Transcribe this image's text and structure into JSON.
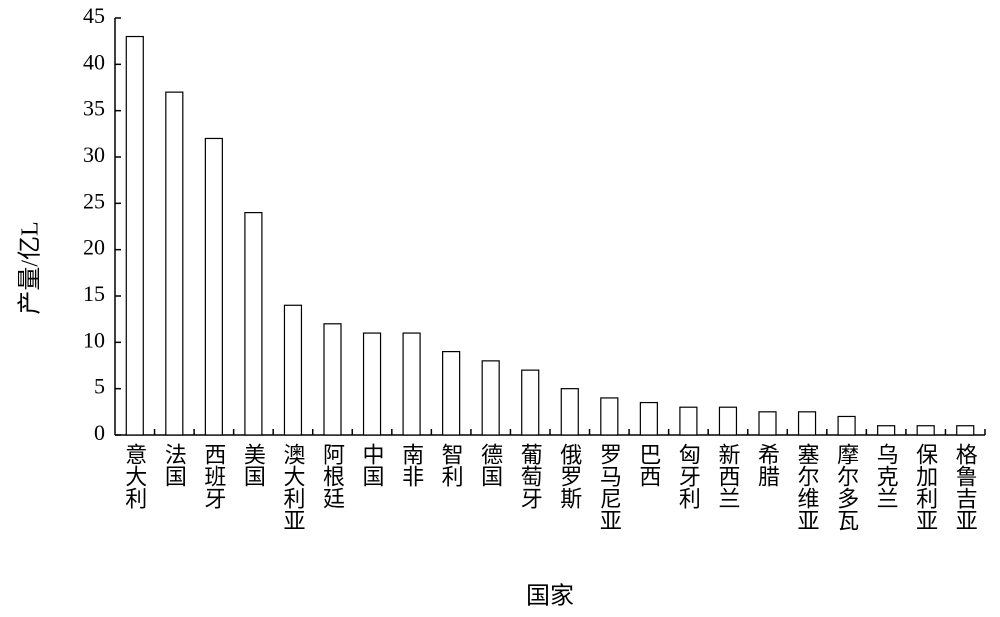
{
  "chart_data": {
    "type": "bar",
    "x_label": "国家",
    "y_label": "产量/亿L",
    "categories": [
      "意大利",
      "法国",
      "西班牙",
      "美国",
      "澳大利亚",
      "阿根廷",
      "中国",
      "南非",
      "智利",
      "德国",
      "葡萄牙",
      "俄罗斯",
      "罗马尼亚",
      "巴西",
      "匈牙利",
      "新西兰",
      "希腊",
      "塞尔维亚",
      "摩尔多瓦",
      "乌克兰",
      "保加利亚",
      "格鲁吉亚"
    ],
    "values": [
      43,
      37,
      32,
      24,
      14,
      12,
      11,
      11,
      9,
      8,
      7,
      5,
      4,
      3.5,
      3,
      3,
      2.5,
      2.5,
      2,
      1,
      1,
      1
    ],
    "color": "#ffffff",
    "ylim": [
      0,
      45
    ],
    "yticks": [
      0,
      5,
      10,
      15,
      20,
      25,
      30,
      35,
      40,
      45
    ],
    "grid": false
  }
}
